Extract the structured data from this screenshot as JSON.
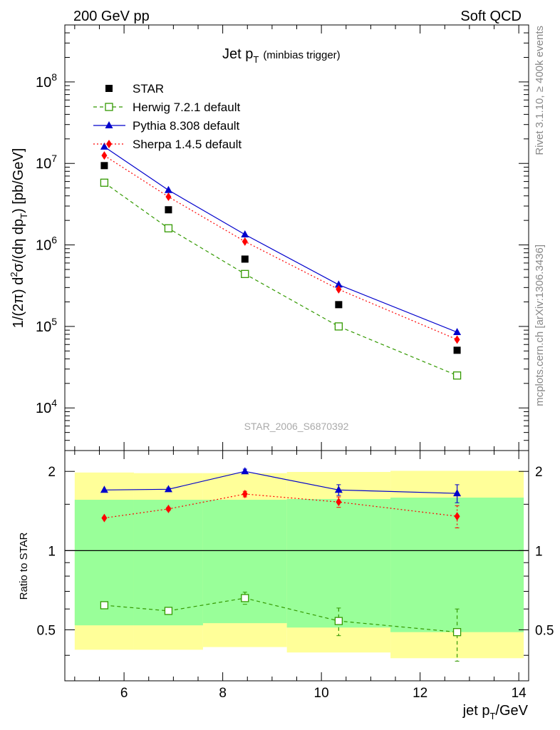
{
  "header": {
    "left": "200 GeV pp",
    "right": "Soft QCD"
  },
  "side_labels": {
    "rivet": "Rivet 3.1.10, ≥ 400k events",
    "mcplots": "mcplots.cern.ch [arXiv:1306.3436]"
  },
  "chart_data": {
    "type": "scatter",
    "title_main": "Jet p",
    "title_sub": "T",
    "title_note": "(minbias trigger)",
    "analysis": "STAR_2006_S6870392",
    "ylabel": "1/(2π) d²σ/(dη dp_T) [pb/GeV]",
    "ratio_ylabel": "Ratio to STAR",
    "xlabel": "jet p_T/GeV",
    "xlim": [
      4.8,
      14.2
    ],
    "ylim": [
      3000,
      500000000
    ],
    "yscale": "log",
    "ratio_ylim": [
      0.32,
      2.4
    ],
    "ratio_yscale": "log",
    "xticks": [
      6,
      8,
      10,
      12,
      14
    ],
    "yticks": [
      {
        "value": 10000,
        "mant": "10",
        "exp": "4"
      },
      {
        "value": 100000,
        "mant": "10",
        "exp": "5"
      },
      {
        "value": 1000000,
        "mant": "10",
        "exp": "6"
      },
      {
        "value": 10000000,
        "mant": "10",
        "exp": "7"
      },
      {
        "value": 100000000,
        "mant": "10",
        "exp": "8"
      }
    ],
    "ratio_yticks": [
      {
        "value": 0.5,
        "label": "0.5"
      },
      {
        "value": 1,
        "label": "1"
      },
      {
        "value": 2,
        "label": "2"
      }
    ],
    "x": [
      5.6,
      6.9,
      8.45,
      10.35,
      12.75
    ],
    "data": {
      "name": "STAR",
      "color": "#000000",
      "values": [
        9400000,
        2700000,
        670000,
        185000,
        51000
      ]
    },
    "series": [
      {
        "name": "Herwig 7.2.1 default",
        "color": "#339900",
        "marker": "open-square",
        "dash": "5,4",
        "values": [
          5800000,
          1600000,
          440000,
          100000,
          25000
        ],
        "ratio": [
          0.62,
          0.59,
          0.66,
          0.54,
          0.49
        ],
        "ratio_err": [
          0.01,
          0.015,
          0.035,
          0.065,
          0.11
        ]
      },
      {
        "name": "Pythia 8.308 default",
        "color": "#0000cc",
        "marker": "triangle",
        "dash": "",
        "values": [
          16000000,
          4700000,
          1340000,
          325000,
          85000
        ],
        "ratio": [
          1.7,
          1.71,
          2.0,
          1.7,
          1.65
        ],
        "ratio_err": [
          0.01,
          0.02,
          0.04,
          0.08,
          0.13
        ]
      },
      {
        "name": "Sherpa 1.4.5 default",
        "color": "#ff0000",
        "marker": "diamond",
        "dash": "2,3",
        "values": [
          12500000,
          3900000,
          1100000,
          285000,
          69000
        ],
        "ratio": [
          1.33,
          1.44,
          1.64,
          1.53,
          1.35
        ],
        "ratio_err": [
          0.01,
          0.02,
          0.04,
          0.07,
          0.13
        ]
      }
    ],
    "bands": [
      {
        "x0": 5.0,
        "x1": 6.2,
        "yellow": [
          0.42,
          1.98
        ],
        "green": [
          0.52,
          1.56
        ]
      },
      {
        "x0": 6.2,
        "x1": 7.6,
        "yellow": [
          0.42,
          1.97
        ],
        "green": [
          0.52,
          1.56
        ]
      },
      {
        "x0": 7.6,
        "x1": 9.3,
        "yellow": [
          0.43,
          1.97
        ],
        "green": [
          0.53,
          1.56
        ]
      },
      {
        "x0": 9.3,
        "x1": 11.4,
        "yellow": [
          0.41,
          1.99
        ],
        "green": [
          0.51,
          1.57
        ]
      },
      {
        "x0": 11.4,
        "x1": 14.1,
        "yellow": [
          0.39,
          2.01
        ],
        "green": [
          0.49,
          1.59
        ]
      }
    ]
  }
}
